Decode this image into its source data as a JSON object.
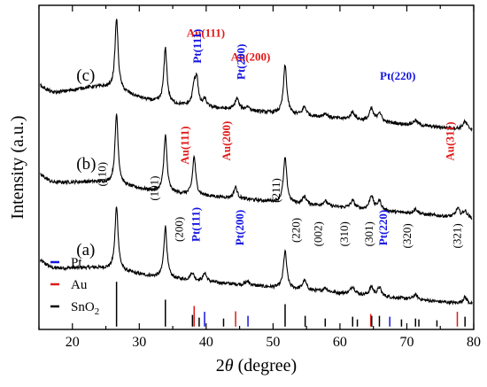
{
  "chart_data": {
    "type": "line",
    "xlabel_parts": [
      "2",
      "θ",
      " (degree)"
    ],
    "ylabel": "Intensity (a.u.)",
    "xlim": [
      15,
      80
    ],
    "x_ticks": [
      20,
      30,
      40,
      50,
      60,
      70,
      80
    ],
    "grid": false,
    "colors": {
      "Pt": "#1515e0",
      "Au": "#e01a1a",
      "SnO2": "#000000"
    },
    "series": [
      {
        "label": "(a)",
        "baseline": 0.1,
        "bump": 0.05,
        "peaks": [
          {
            "x": 26.6,
            "h": 0.67,
            "w": 0.28
          },
          {
            "x": 33.9,
            "h": 0.54,
            "w": 0.28
          },
          {
            "x": 37.9,
            "h": 0.08,
            "w": 0.35
          },
          {
            "x": 39.8,
            "h": 0.09,
            "w": 0.3
          },
          {
            "x": 46.2,
            "h": 0.04,
            "w": 0.4
          },
          {
            "x": 51.8,
            "h": 0.39,
            "w": 0.3
          },
          {
            "x": 54.7,
            "h": 0.1,
            "w": 0.35
          },
          {
            "x": 57.8,
            "h": 0.04,
            "w": 0.4
          },
          {
            "x": 61.9,
            "h": 0.08,
            "w": 0.4
          },
          {
            "x": 64.7,
            "h": 0.09,
            "w": 0.35
          },
          {
            "x": 65.9,
            "h": 0.09,
            "w": 0.35
          },
          {
            "x": 71.3,
            "h": 0.05,
            "w": 0.4
          },
          {
            "x": 78.7,
            "h": 0.07,
            "w": 0.4
          }
        ]
      },
      {
        "label": "(b)",
        "baseline": 1.0,
        "bump": 0.05,
        "peaks": [
          {
            "x": 26.6,
            "h": 0.74,
            "w": 0.28
          },
          {
            "x": 33.9,
            "h": 0.6,
            "w": 0.28
          },
          {
            "x": 38.2,
            "h": 0.4,
            "w": 0.28
          },
          {
            "x": 44.4,
            "h": 0.12,
            "w": 0.3
          },
          {
            "x": 51.8,
            "h": 0.47,
            "w": 0.3
          },
          {
            "x": 54.7,
            "h": 0.08,
            "w": 0.35
          },
          {
            "x": 57.8,
            "h": 0.05,
            "w": 0.4
          },
          {
            "x": 61.9,
            "h": 0.08,
            "w": 0.4
          },
          {
            "x": 64.7,
            "h": 0.15,
            "w": 0.35
          },
          {
            "x": 65.9,
            "h": 0.1,
            "w": 0.35
          },
          {
            "x": 71.3,
            "h": 0.05,
            "w": 0.4
          },
          {
            "x": 77.6,
            "h": 0.09,
            "w": 0.35
          },
          {
            "x": 78.7,
            "h": 0.07,
            "w": 0.4
          }
        ]
      },
      {
        "label": "(c)",
        "baseline": 1.93,
        "bump": 0.12,
        "peaks": [
          {
            "x": 26.6,
            "h": 0.75,
            "w": 0.28
          },
          {
            "x": 33.9,
            "h": 0.58,
            "w": 0.28
          },
          {
            "x": 38.2,
            "h": 0.2,
            "w": 0.3
          },
          {
            "x": 38.6,
            "h": 0.27,
            "w": 0.25
          },
          {
            "x": 39.8,
            "h": 0.08,
            "w": 0.3
          },
          {
            "x": 44.6,
            "h": 0.12,
            "w": 0.35
          },
          {
            "x": 46.2,
            "h": 0.04,
            "w": 0.4
          },
          {
            "x": 51.8,
            "h": 0.51,
            "w": 0.3
          },
          {
            "x": 54.7,
            "h": 0.09,
            "w": 0.35
          },
          {
            "x": 57.8,
            "h": 0.04,
            "w": 0.4
          },
          {
            "x": 61.9,
            "h": 0.08,
            "w": 0.4
          },
          {
            "x": 64.7,
            "h": 0.13,
            "w": 0.35
          },
          {
            "x": 65.9,
            "h": 0.1,
            "w": 0.35
          },
          {
            "x": 71.3,
            "h": 0.05,
            "w": 0.4
          },
          {
            "x": 78.7,
            "h": 0.08,
            "w": 0.4
          }
        ]
      }
    ],
    "peak_labels": [
      {
        "text": "(110)",
        "x": 25.0,
        "y": 0.95,
        "color": "#000000",
        "rot": true
      },
      {
        "text": "(101)",
        "x": 32.8,
        "y": 0.8,
        "color": "#000000",
        "rot": true
      },
      {
        "text": "(200)",
        "x": 36.5,
        "y": 0.37,
        "color": "#000000",
        "rot": true
      },
      {
        "text": "Pt(111)",
        "x": 39.0,
        "y": 0.37,
        "color": "#1515e0",
        "rot": true,
        "bold": true
      },
      {
        "text": "Pt(200)",
        "x": 45.6,
        "y": 0.33,
        "color": "#1515e0",
        "rot": true,
        "bold": true
      },
      {
        "text": "(211)",
        "x": 51.0,
        "y": 0.78,
        "color": "#000000",
        "rot": true
      },
      {
        "text": "(220)",
        "x": 54.0,
        "y": 0.36,
        "color": "#000000",
        "rot": true
      },
      {
        "text": "(002)",
        "x": 57.3,
        "y": 0.32,
        "color": "#000000",
        "rot": true
      },
      {
        "text": "(310)",
        "x": 61.2,
        "y": 0.32,
        "color": "#000000",
        "rot": true
      },
      {
        "text": "(301)",
        "x": 64.9,
        "y": 0.32,
        "color": "#000000",
        "rot": true
      },
      {
        "text": "Pt(220)",
        "x": 67.0,
        "y": 0.33,
        "color": "#1515e0",
        "rot": true,
        "bold": true
      },
      {
        "text": "(320)",
        "x": 70.6,
        "y": 0.3,
        "color": "#000000",
        "rot": true
      },
      {
        "text": "(321)",
        "x": 78.1,
        "y": 0.3,
        "color": "#000000",
        "rot": true
      },
      {
        "text": "Au(111)",
        "x": 37.4,
        "y": 1.18,
        "color": "#e01a1a",
        "rot": true,
        "bold": true
      },
      {
        "text": "Au(200)",
        "x": 43.6,
        "y": 1.22,
        "color": "#e01a1a",
        "rot": true,
        "bold": true
      },
      {
        "text": "Au(311)",
        "x": 77.0,
        "y": 1.22,
        "color": "#e01a1a",
        "rot": true,
        "bold": true
      },
      {
        "text": "Au(111)",
        "x": 37.6,
        "y": 2.52,
        "color": "#e01a1a",
        "rot": false,
        "bold": true
      },
      {
        "text": "Pt(111)",
        "x": 39.2,
        "y": 2.24,
        "color": "#1515e0",
        "rot": true,
        "bold": true
      },
      {
        "text": "Au(200)",
        "x": 44.2,
        "y": 2.27,
        "color": "#e01a1a",
        "rot": false,
        "bold": true
      },
      {
        "text": "Pt(200)",
        "x": 45.8,
        "y": 2.07,
        "color": "#1515e0",
        "rot": true,
        "bold": true
      },
      {
        "text": "Pt(220)",
        "x": 66.5,
        "y": 2.07,
        "color": "#1515e0",
        "rot": false,
        "bold": true
      }
    ],
    "reference_lines": [
      {
        "x": 26.6,
        "h": 1.0,
        "color": "#000000"
      },
      {
        "x": 33.9,
        "h": 0.6,
        "color": "#000000"
      },
      {
        "x": 37.95,
        "h": 0.26,
        "color": "#000000"
      },
      {
        "x": 38.2,
        "h": 0.46,
        "color": "#e01a1a"
      },
      {
        "x": 38.95,
        "h": 0.2,
        "color": "#000000"
      },
      {
        "x": 39.76,
        "h": 0.33,
        "color": "#1515e0"
      },
      {
        "x": 42.6,
        "h": 0.18,
        "color": "#000000"
      },
      {
        "x": 44.4,
        "h": 0.34,
        "color": "#e01a1a"
      },
      {
        "x": 46.25,
        "h": 0.24,
        "color": "#1515e0"
      },
      {
        "x": 51.8,
        "h": 0.5,
        "color": "#000000"
      },
      {
        "x": 54.8,
        "h": 0.24,
        "color": "#000000"
      },
      {
        "x": 57.8,
        "h": 0.18,
        "color": "#000000"
      },
      {
        "x": 61.9,
        "h": 0.22,
        "color": "#000000"
      },
      {
        "x": 62.6,
        "h": 0.16,
        "color": "#000000"
      },
      {
        "x": 64.6,
        "h": 0.28,
        "color": "#e01a1a"
      },
      {
        "x": 64.75,
        "h": 0.24,
        "color": "#000000"
      },
      {
        "x": 65.9,
        "h": 0.24,
        "color": "#000000"
      },
      {
        "x": 67.45,
        "h": 0.22,
        "color": "#1515e0"
      },
      {
        "x": 69.2,
        "h": 0.16,
        "color": "#000000"
      },
      {
        "x": 71.3,
        "h": 0.18,
        "color": "#000000"
      },
      {
        "x": 71.8,
        "h": 0.16,
        "color": "#000000"
      },
      {
        "x": 74.5,
        "h": 0.14,
        "color": "#000000"
      },
      {
        "x": 77.55,
        "h": 0.33,
        "color": "#e01a1a"
      },
      {
        "x": 78.7,
        "h": 0.22,
        "color": "#000000"
      }
    ],
    "legend": [
      {
        "label": "Pt",
        "color": "#1515e0"
      },
      {
        "label": "Au",
        "color": "#e01a1a"
      },
      {
        "label": "SnO",
        "sub": "2",
        "color": "#000000"
      }
    ]
  }
}
